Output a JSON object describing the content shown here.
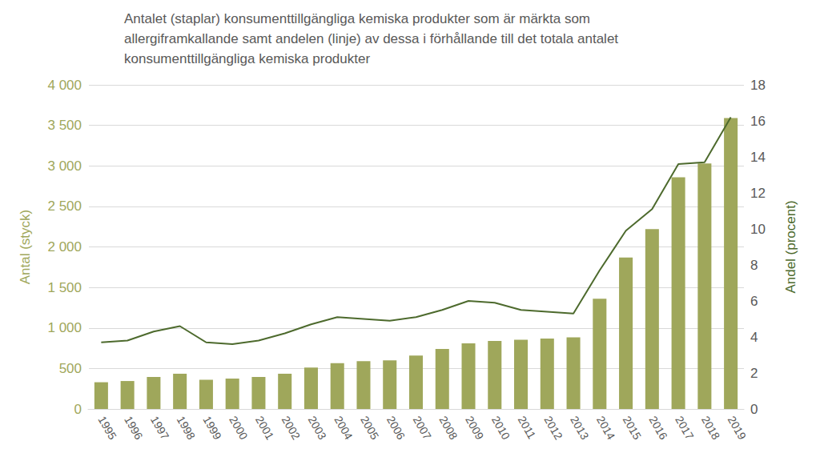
{
  "chart_data": {
    "type": "bar",
    "title": "Antalet (staplar) konsumenttillgängliga kemiska produkter som är märkta som allergiframkallande samt andelen (linje) av dessa i förhållande till det totala antalet konsumenttillgängliga kemiska produkter",
    "ylabel": "Antal (styck)",
    "y2label": "Andel (procent)",
    "categories": [
      "1995",
      "1996",
      "1997",
      "1998",
      "1999",
      "2000",
      "2001",
      "2002",
      "2003",
      "2004",
      "2005",
      "2006",
      "2007",
      "2008",
      "2009",
      "2010",
      "2011",
      "2012",
      "2013",
      "2014",
      "2015",
      "2016",
      "2017",
      "2018",
      "2019"
    ],
    "series": [
      {
        "type": "bar",
        "color": "#9fa75b",
        "values": [
          330,
          345,
          395,
          435,
          360,
          375,
          395,
          435,
          510,
          565,
          590,
          600,
          660,
          740,
          810,
          840,
          855,
          870,
          885,
          1360,
          1870,
          2220,
          2860,
          3030,
          3590
        ]
      },
      {
        "type": "line",
        "axis": "y2",
        "color": "#4d6a2d",
        "marker": "none",
        "line_style": "solid",
        "values": [
          3.7,
          3.8,
          4.3,
          4.6,
          3.7,
          3.6,
          3.8,
          4.2,
          4.7,
          5.1,
          5.0,
          4.9,
          5.1,
          5.5,
          6.0,
          5.9,
          5.5,
          5.4,
          5.3,
          7.7,
          9.9,
          11.1,
          13.6,
          13.7,
          16.2
        ]
      }
    ],
    "ylim": [
      0,
      4000
    ],
    "yticks": [
      0,
      500,
      {
        "value": 1000,
        "label": "1 000"
      },
      {
        "value": 1500,
        "label": "1 500"
      },
      {
        "value": 2000,
        "label": "2 000"
      },
      {
        "value": 2500,
        "label": "2 500"
      },
      {
        "value": 3000,
        "label": "3 000"
      },
      {
        "value": 3500,
        "label": "3 500"
      },
      {
        "value": 4000,
        "label": "4 000"
      }
    ],
    "y2lim": [
      0,
      18
    ],
    "y2ticks": [
      0,
      2,
      4,
      6,
      8,
      10,
      12,
      14,
      16,
      18
    ],
    "grid": true
  }
}
